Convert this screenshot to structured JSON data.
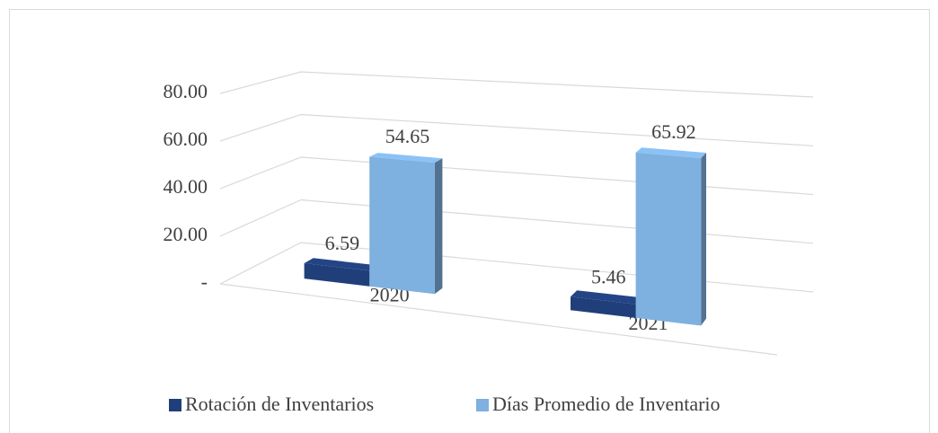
{
  "chart_data": {
    "type": "bar3d",
    "categories": [
      "2020",
      "2021"
    ],
    "series": [
      {
        "name": "Rotación de Inventarios",
        "color": "#203f7a",
        "values": [
          6.59,
          5.46
        ]
      },
      {
        "name": "Días Promedio de Inventario",
        "color": "#7eb0e0",
        "values": [
          54.65,
          65.92
        ]
      }
    ],
    "ylim": [
      0,
      80
    ],
    "yticks": [
      {
        "value": 0,
        "label": "-"
      },
      {
        "value": 20,
        "label": "20.00"
      },
      {
        "value": 40,
        "label": "40.00"
      },
      {
        "value": 60,
        "label": "60.00"
      },
      {
        "value": 80,
        "label": "80.00"
      }
    ],
    "grid": true,
    "legend": "bottom"
  }
}
